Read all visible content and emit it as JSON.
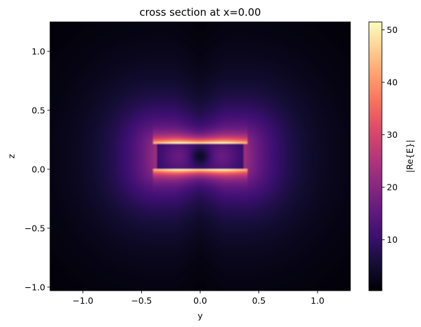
{
  "chart_data": {
    "type": "heatmap",
    "title": "cross section at x=0.00",
    "xlabel": "y",
    "ylabel": "z",
    "xlim": [
      -1.28,
      1.28
    ],
    "ylim": [
      -1.03,
      1.25
    ],
    "x_ticks": [
      "−1.0",
      "−0.5",
      "0.0",
      "0.5",
      "1.0"
    ],
    "x_tick_values": [
      -1.0,
      -0.5,
      0.0,
      0.5,
      1.0
    ],
    "y_ticks": [
      "−1.0",
      "−0.5",
      "0.0",
      "0.5",
      "1.0"
    ],
    "y_tick_values": [
      -1.0,
      -0.5,
      0.0,
      0.5,
      1.0
    ],
    "colormap": "magma",
    "colorbar": {
      "label": "|Re{E}|",
      "min": 0.3,
      "max": 51.5,
      "ticks": [
        "10",
        "20",
        "30",
        "40",
        "50"
      ],
      "tick_values": [
        10,
        20,
        30,
        40,
        50
      ]
    },
    "structure": {
      "y_range": [
        -0.375,
        0.375
      ],
      "z_range": [
        0.0,
        0.22
      ]
    },
    "grid": false,
    "legend": "none"
  }
}
